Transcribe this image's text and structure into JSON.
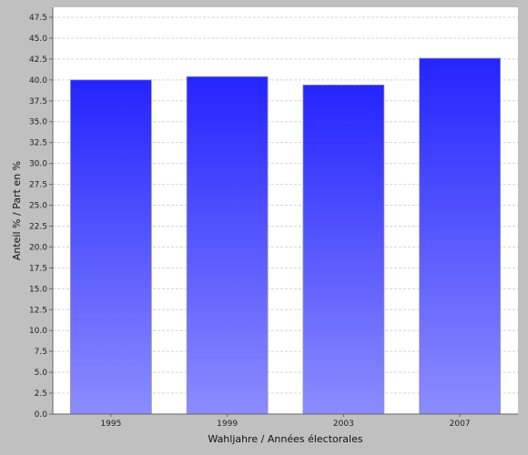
{
  "chart_data": {
    "type": "bar",
    "title": "",
    "xlabel": "Wahljahre / Années électorales",
    "ylabel": "Anteil % / Part en %",
    "categories": [
      "1995",
      "1999",
      "2003",
      "2007"
    ],
    "series": [
      {
        "values": [
          40.0,
          40.4,
          39.4,
          42.6
        ]
      }
    ],
    "ylim": [
      0,
      47.5
    ],
    "yticks": [
      "0.0",
      "2.5",
      "5.0",
      "7.5",
      "10.0",
      "12.5",
      "15.0",
      "17.5",
      "20.0",
      "22.5",
      "25.0",
      "27.5",
      "30.0",
      "32.5",
      "35.0",
      "37.5",
      "40.0",
      "42.5",
      "45.0",
      "47.5"
    ],
    "grid": "horizontal-dashed",
    "legend": "none",
    "colors": {
      "page_background": "#c0c0c0",
      "plot_background": "#ffffff",
      "bar_top": "#2424ff",
      "bar_bottom": "#8c8cff",
      "grid": "#d4d4d4",
      "axis": "#666666"
    }
  }
}
